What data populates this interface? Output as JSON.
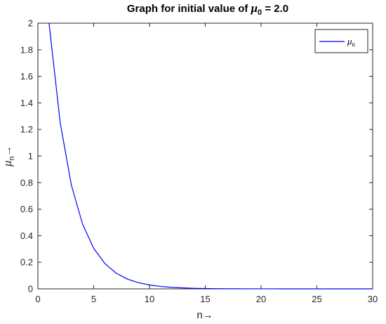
{
  "chart_data": {
    "type": "line",
    "title": {
      "prefix": "Graph for initial value of ",
      "symbol": "μ",
      "subscript": "0",
      "suffix": " = 2.0"
    },
    "xlabel": "n→",
    "ylabel": {
      "symbol": "μ",
      "subscript": "n",
      "suffix": "→"
    },
    "xlim": [
      0,
      30
    ],
    "ylim": [
      0,
      2
    ],
    "xticks": [
      0,
      5,
      10,
      15,
      20,
      25,
      30
    ],
    "xtick_labels": [
      "0",
      "5",
      "10",
      "15",
      "20",
      "25",
      "30"
    ],
    "yticks": [
      0,
      0.2,
      0.4,
      0.6,
      0.8,
      1,
      1.2,
      1.4,
      1.6,
      1.8,
      2
    ],
    "ytick_labels": [
      "0",
      "0.2",
      "0.4",
      "0.6",
      "0.8",
      "1",
      "1.2",
      "1.4",
      "1.6",
      "1.8",
      "2"
    ],
    "grid": false,
    "legend_position": "top-right",
    "series": [
      {
        "name": {
          "symbol": "μ",
          "subscript": "n"
        },
        "color": "#0000ff",
        "x": [
          1,
          2,
          3,
          4,
          5,
          6,
          7,
          8,
          9,
          10,
          11,
          12,
          13,
          14,
          15,
          16,
          17,
          18,
          19,
          20,
          21,
          22,
          23,
          24,
          25,
          26,
          27,
          28,
          29,
          30
        ],
        "y": [
          2.0,
          1.25,
          0.781,
          0.488,
          0.305,
          0.191,
          0.119,
          0.0745,
          0.0466,
          0.0291,
          0.0182,
          0.0114,
          0.0071,
          0.0044,
          0.0028,
          0.0017,
          0.0011,
          0.0007,
          0.0004,
          0.0003,
          0.0002,
          0.0001,
          0.0001,
          0.0,
          0.0,
          0.0,
          0.0,
          0.0,
          0.0,
          0.0
        ]
      }
    ]
  }
}
